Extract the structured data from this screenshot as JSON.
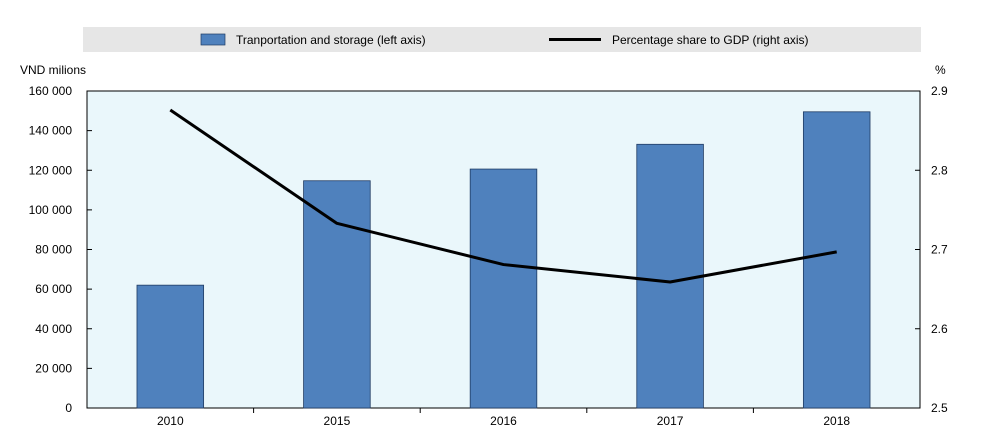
{
  "chart_data": {
    "type": "bar",
    "categories": [
      "2010",
      "2015",
      "2016",
      "2017",
      "2018"
    ],
    "series": [
      {
        "name": "Tranportation and storage (left axis)",
        "type": "bar",
        "axis": "left",
        "color": "#4f81bd",
        "values": [
          62000,
          114700,
          120600,
          133100,
          149500
        ]
      },
      {
        "name": "Percentage share to GDP (right axis)",
        "type": "line",
        "axis": "right",
        "color": "#000000",
        "values": [
          2.876,
          2.733,
          2.681,
          2.659,
          2.697
        ]
      }
    ],
    "ylabel_left": "VND milions",
    "ylabel_right": "%",
    "ylim_left": [
      0,
      160000
    ],
    "ylim_right": [
      2.5,
      2.9
    ],
    "yticks_left": [
      "0",
      "20 000",
      "40 000",
      "60 000",
      "80 000",
      "100 000",
      "120 000",
      "140 000",
      "160 000"
    ],
    "yticks_right": [
      "2.5",
      "2.6",
      "2.7",
      "2.8",
      "2.9"
    ],
    "legend_position": "top",
    "colors": {
      "plot_background": "#eaf7fb",
      "legend_background": "#e6e6e6",
      "bar": "#4f81bd",
      "line": "#000000"
    }
  }
}
